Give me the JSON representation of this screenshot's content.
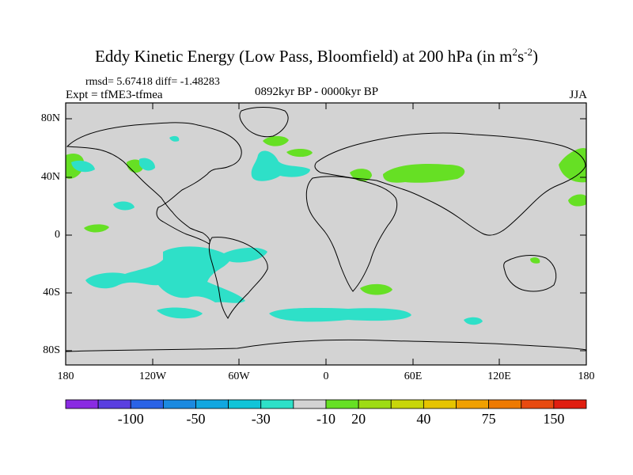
{
  "title": {
    "main": "Eddy Kinetic Energy (Low Pass, Bloomfield) at 200 hPa (in m",
    "sup1": "2",
    "mid": "s",
    "sup2": "-2",
    "end": ")"
  },
  "stats": {
    "rmsd_text": "rmsd= 5.67418 diff= -1.48283",
    "expt_text": "Expt = tfME3-tfmea",
    "period_text": "0892kyr BP - 0000kyr BP",
    "season_text": "JJA"
  },
  "map": {
    "lat_labels": [
      "80N",
      "40N",
      "0",
      "40S",
      "80S"
    ],
    "lon_labels": [
      "180",
      "120W",
      "60W",
      "0",
      "60E",
      "120E",
      "180"
    ],
    "background_color": "#d3d3d3",
    "negative_color": "#2ee0c8",
    "positive_color": "#66e024"
  },
  "colorbar": {
    "colors": [
      "#8a2be2",
      "#5a3fe0",
      "#2a63e6",
      "#1b8ae0",
      "#12a7e0",
      "#10c4d8",
      "#2ee0c8",
      "#d3d3d3",
      "#66e024",
      "#9edc14",
      "#c8d60a",
      "#e6c400",
      "#f0a000",
      "#ee7a00",
      "#e84a10",
      "#e01e10"
    ],
    "labels": [
      "-100",
      "-50",
      "-30",
      "-10",
      "20",
      "40",
      "75",
      "150"
    ]
  }
}
